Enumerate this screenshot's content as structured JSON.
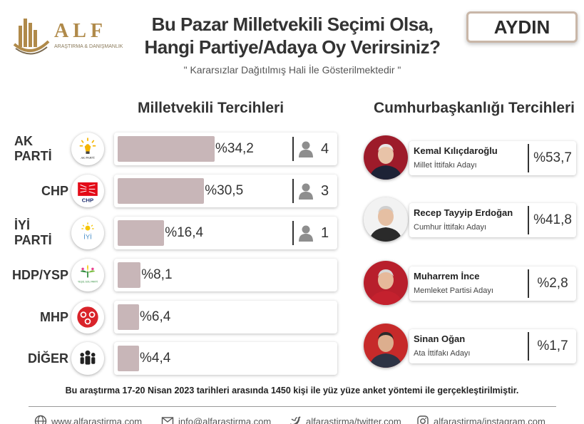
{
  "brand": {
    "name": "ALF",
    "tagline": "ARAŞTIRMA & DANIŞMANLIK"
  },
  "header": {
    "title_line1": "Bu Pazar Milletvekili Seçimi Olsa,",
    "title_line2": "Hangi Partiye/Adaya Oy Verirsiniz?",
    "subtitle": "\" Kararsızlar Dağıtılmış Hali İle Gösterilmektedir \"",
    "region": "AYDIN"
  },
  "sections": {
    "left_title": "Milletvekili Tercihleri",
    "right_title": "Cumhurbaşkanlığı Tercihleri"
  },
  "chart_data": [
    {
      "type": "bar",
      "title": "Milletvekili Tercihleri",
      "categories": [
        "AK PARTİ",
        "CHP",
        "İYİ PARTİ",
        "HDP/YSP",
        "MHP",
        "DİĞER"
      ],
      "values": [
        34.2,
        30.5,
        16.4,
        8.1,
        6.4,
        4.4
      ],
      "value_labels": [
        "%34,2",
        "%30,5",
        "%16,4",
        "%8,1",
        "%6,4",
        "%4,4"
      ],
      "seats": [
        4,
        3,
        1,
        null,
        null,
        null
      ],
      "bar_color": "#c8b6b8"
    },
    {
      "type": "table",
      "title": "Cumhurbaşkanlığı Tercihleri",
      "candidates": [
        {
          "name": "Kemal Kılıçdaroğlu",
          "alliance": "Millet İttifakı Adayı",
          "value": 53.7,
          "label": "%53,7"
        },
        {
          "name": "Recep Tayyip Erdoğan",
          "alliance": "Cumhur İttifakı Adayı",
          "value": 41.8,
          "label": "%41,8"
        },
        {
          "name": "Muharrem İnce",
          "alliance": "Memleket Partisi Adayı",
          "value": 2.8,
          "label": "%2,8"
        },
        {
          "name": "Sinan Oğan",
          "alliance": "Ata İttifakı Adayı",
          "value": 1.7,
          "label": "%1,7"
        }
      ]
    }
  ],
  "party_logo_text": {
    "ak": "AK PARTİ",
    "chp": "CHP",
    "iyi": "İYİ",
    "hdp": "YEŞİL SOL PARTİ"
  },
  "footnote": "Bu araştırma 17-20 Nisan 2023 tarihleri arasında 1450 kişi ile yüz yüze anket yöntemi ile gerçekleştirilmiştir.",
  "footer": {
    "web": "www.alfarastirma.com",
    "email": "info@alfarastirma.com",
    "twitter": "alfarastirma/twitter.com",
    "instagram": "alfarastirma/instagram.com"
  },
  "colors": {
    "bar": "#c8b6b8",
    "gold": "#b08a4a",
    "chp_red": "#e30a17",
    "mhp_red": "#d9232a",
    "hdp_green": "#2e8b3a"
  }
}
